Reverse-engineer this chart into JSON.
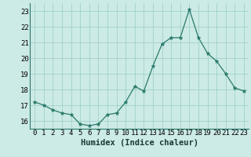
{
  "x": [
    0,
    1,
    2,
    3,
    4,
    5,
    6,
    7,
    8,
    9,
    10,
    11,
    12,
    13,
    14,
    15,
    16,
    17,
    18,
    19,
    20,
    21,
    22,
    23
  ],
  "y": [
    17.2,
    17.0,
    16.7,
    16.5,
    16.4,
    15.8,
    15.7,
    15.8,
    16.4,
    16.5,
    17.2,
    18.2,
    17.9,
    19.5,
    20.9,
    21.3,
    21.3,
    23.1,
    21.3,
    20.3,
    19.8,
    19.0,
    18.1,
    17.9
  ],
  "xlabel": "Humidex (Indice chaleur)",
  "ylim": [
    15.5,
    23.5
  ],
  "xlim": [
    -0.5,
    23.5
  ],
  "yticks": [
    16,
    17,
    18,
    19,
    20,
    21,
    22,
    23
  ],
  "xticks": [
    0,
    1,
    2,
    3,
    4,
    5,
    6,
    7,
    8,
    9,
    10,
    11,
    12,
    13,
    14,
    15,
    16,
    17,
    18,
    19,
    20,
    21,
    22,
    23
  ],
  "line_color": "#2a7a6b",
  "marker_color": "#2a7a6b",
  "bg_color": "#cceae6",
  "grid_color": "#99ccc6",
  "axis_label_fontsize": 7.5,
  "tick_fontsize": 6.5
}
